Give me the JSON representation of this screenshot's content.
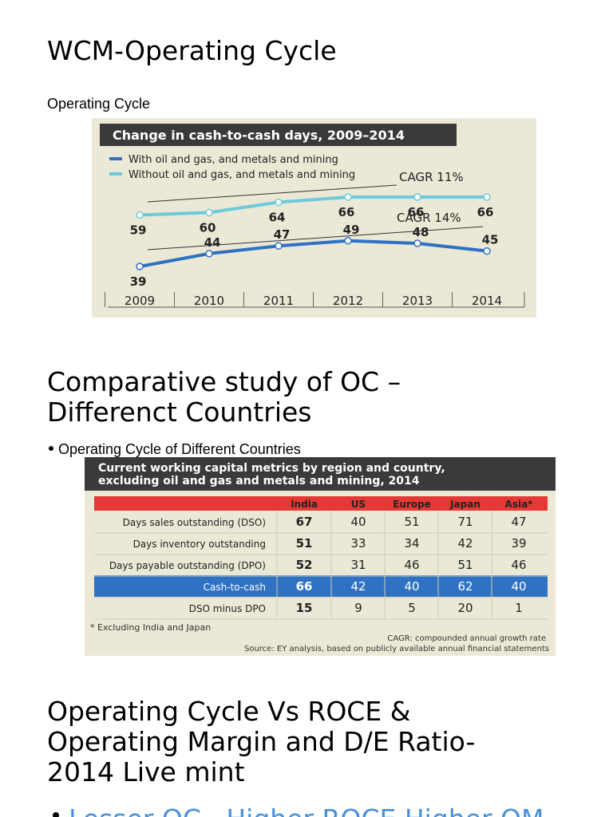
{
  "heading1": "WCM-Operating Cycle",
  "caption1": "Operating Cycle",
  "chart_data": {
    "type": "line",
    "title": "Change in cash-to-cash days, 2009–2014",
    "categories": [
      "2009",
      "2010",
      "2011",
      "2012",
      "2013",
      "2014"
    ],
    "series": [
      {
        "name": "With oil and gas, and metals and mining",
        "color": "#2f72c4",
        "values": [
          39,
          44,
          47,
          49,
          48,
          45
        ]
      },
      {
        "name": "Without oil and gas, and metals and mining",
        "color": "#6ccadb",
        "values": [
          59,
          60,
          64,
          66,
          66,
          66
        ]
      }
    ],
    "annotations": [
      "CAGR 11%",
      "CAGR 14%"
    ]
  },
  "heading2": [
    "Comparative study of OC –",
    "Differenct Countries"
  ],
  "bullet1": "Operating Cycle of Different Countries",
  "table": {
    "title": [
      "Current working capital metrics by region and country,",
      "excluding oil and gas and metals and mining, 2014"
    ],
    "columns": [
      "India",
      "US",
      "Europe",
      "Japan",
      "Asia*"
    ],
    "rows": [
      [
        "Days sales outstanding (DSO)",
        "67",
        "40",
        "51",
        "71",
        "47"
      ],
      [
        "Days inventory outstanding",
        "51",
        "33",
        "34",
        "42",
        "39"
      ],
      [
        "Days payable outstanding (DPO)",
        "52",
        "31",
        "46",
        "51",
        "46"
      ],
      [
        "Cash-to-cash",
        "66",
        "42",
        "40",
        "62",
        "40"
      ],
      [
        "DSO minus DPO",
        "15",
        "9",
        "5",
        "20",
        "1"
      ]
    ],
    "footnote": "* Excluding India and Japan",
    "notes": [
      "CAGR: compounded annual growth rate",
      "Source: EY analysis, based on publicly available annual financial statements"
    ]
  },
  "heading3": [
    "Operating Cycle Vs ROCE &",
    "Operating Margin and D/E Ratio-",
    "2014 Live mint"
  ],
  "bullet2": "Lesser OC , Higher ROCE,Higher OM"
}
